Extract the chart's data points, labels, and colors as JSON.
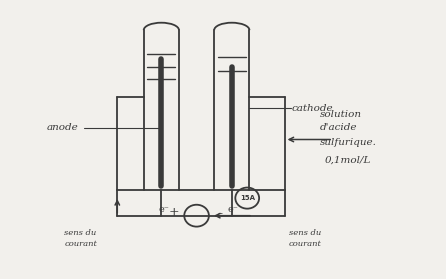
{
  "bg_color": "#f2f0ec",
  "line_color": "#3a3a3a",
  "text_color": "#3a3a3a",
  "figsize": [
    4.46,
    2.79
  ],
  "dpi": 100,
  "anode_label": "anode",
  "cathode_label": "cathode",
  "solution_line1": "solution",
  "solution_line2": "d'acide",
  "solution_line3": "sulfurique.",
  "solution_line4": "0,1mol/L",
  "sens_gauche": "sens du\ncourant",
  "sens_droit": "sens du\ncourant",
  "electrons_left": "e⁻",
  "electrons_right": "e⁻",
  "ammeter_label": "15A",
  "plus_label": "+",
  "minus_label": "-"
}
